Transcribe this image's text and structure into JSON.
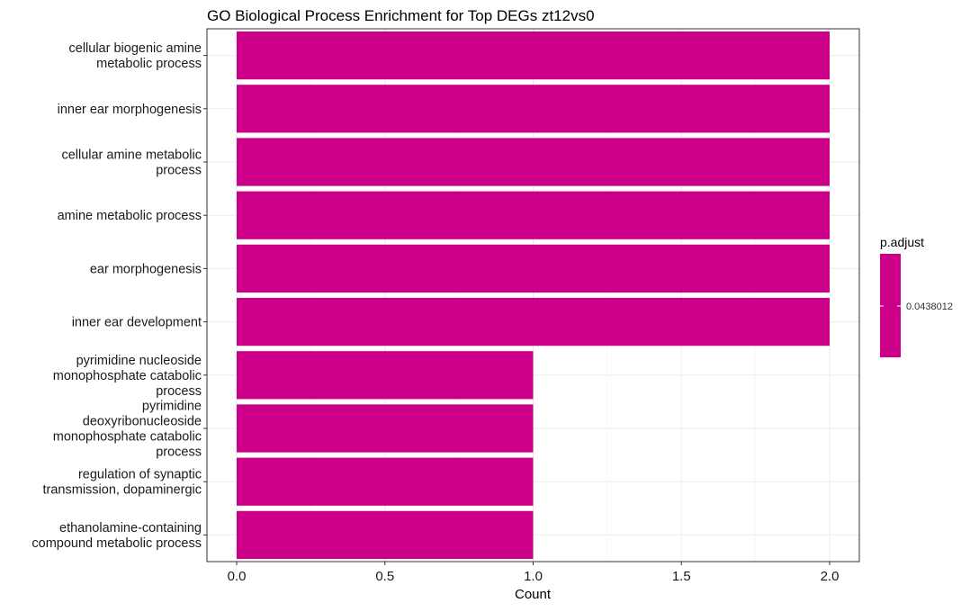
{
  "chart_data": {
    "type": "bar",
    "orientation": "horizontal",
    "title": "GO Biological Process Enrichment for Top DEGs zt12vs0",
    "xlabel": "Count",
    "ylabel": "",
    "xlim": [
      0,
      2
    ],
    "x_ticks": [
      "0.0",
      "0.5",
      "1.0",
      "1.5",
      "2.0"
    ],
    "grid": true,
    "legend_position": "right",
    "bar_color": "#CC0088",
    "categories": [
      [
        "cellular biogenic amine",
        "metabolic process"
      ],
      [
        "inner ear morphogenesis"
      ],
      [
        "cellular amine metabolic",
        "process"
      ],
      [
        "amine metabolic process"
      ],
      [
        "ear morphogenesis"
      ],
      [
        "inner ear development"
      ],
      [
        "pyrimidine nucleoside",
        "monophosphate catabolic",
        "process"
      ],
      [
        "pyrimidine",
        "deoxyribonucleoside",
        "monophosphate catabolic",
        "process"
      ],
      [
        "regulation of synaptic",
        "transmission, dopaminergic"
      ],
      [
        "ethanolamine-containing",
        "compound metabolic process"
      ]
    ],
    "values": [
      2,
      2,
      2,
      2,
      2,
      2,
      1,
      1,
      1,
      1
    ],
    "legend": {
      "title": "p.adjust",
      "label": "0.0438012",
      "color": "#CC0088"
    }
  }
}
